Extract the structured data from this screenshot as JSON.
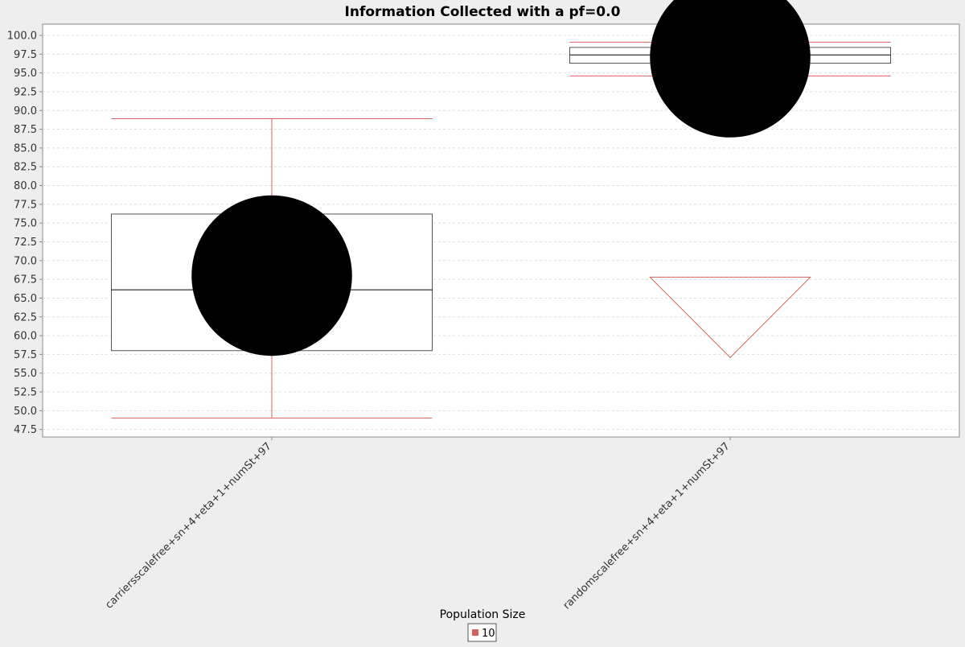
{
  "chart_data": {
    "type": "box",
    "title": "Information Collected with a pf=0.0",
    "xlabel": "",
    "ylabel": "",
    "ylim": [
      46.5,
      101.5
    ],
    "y_ticks": [
      "47.5",
      "50.0",
      "52.5",
      "55.0",
      "57.5",
      "60.0",
      "62.5",
      "65.0",
      "67.5",
      "70.0",
      "72.5",
      "75.0",
      "77.5",
      "80.0",
      "82.5",
      "85.0",
      "87.5",
      "90.0",
      "92.5",
      "95.0",
      "97.5",
      "100.0"
    ],
    "grid": true,
    "legend_title": "Population Size",
    "legend_position": "bottom",
    "categories": [
      "carriersscalefree+sn+4+eta+1+numSt+97",
      "randomscalefree+sn+4+eta+1+numSt+97"
    ],
    "series": [
      {
        "name": "10",
        "color": "#d95f5f",
        "boxes": [
          {
            "whisker_low": 49.0,
            "q1": 58.0,
            "median": 66.1,
            "q3": 76.2,
            "whisker_high": 88.9,
            "mean": 68.0,
            "outlier_markers": []
          },
          {
            "whisker_low": 94.6,
            "q1": 96.3,
            "median": 97.4,
            "q3": 98.4,
            "whisker_high": 99.1,
            "mean": 97.1,
            "outlier_markers": [
              {
                "value": 67.8,
                "direction": "below"
              }
            ]
          }
        ]
      }
    ]
  }
}
